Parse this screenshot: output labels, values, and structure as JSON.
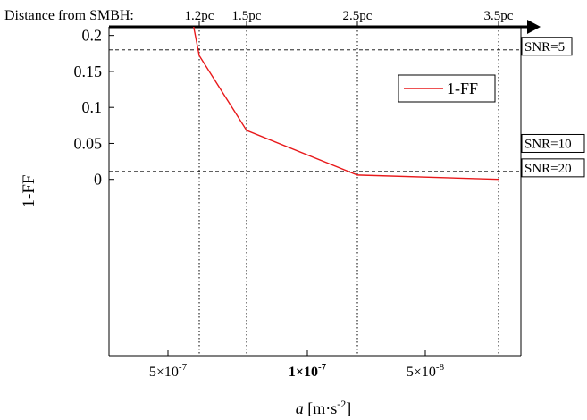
{
  "chart_data": {
    "type": "line",
    "title": "",
    "xlabel": "a [m·s⁻²]",
    "xlabel_parts": {
      "var": "a",
      "unit_open": " [m·s",
      "exp": "-2",
      "unit_close": "]"
    },
    "ylabel": "1-FF",
    "ylim": [
      -0.245,
      0.212
    ],
    "yticks": [
      {
        "value": 0,
        "label": "0"
      },
      {
        "value": 0.05,
        "label": "0.05"
      },
      {
        "value": 0.1,
        "label": "0.1"
      },
      {
        "value": 0.15,
        "label": "0.15"
      },
      {
        "value": 0.2,
        "label": "0.2"
      }
    ],
    "xscale": "categorical (acceleration decreasing left to right)",
    "xticks": [
      {
        "base": "5×10",
        "exp": "-7",
        "bold": false
      },
      {
        "base": "1×10",
        "exp": "-7",
        "bold": true
      },
      {
        "base": "5×10",
        "exp": "-8",
        "bold": false
      }
    ],
    "top_axis": {
      "label": "Distance from SMBH:",
      "ticks": [
        "1.2pc",
        "1.5pc",
        "2.5pc",
        "3.5pc"
      ]
    },
    "series": [
      {
        "name": "1-FF",
        "color": "#e8191b",
        "points": [
          {
            "distance": "1.2pc",
            "value": 0.172
          },
          {
            "distance": "1.5pc",
            "value": 0.068
          },
          {
            "distance": "2.5pc",
            "value": 0.006
          },
          {
            "distance": "3.5pc",
            "value": 0.0
          }
        ]
      }
    ],
    "snr_lines": [
      {
        "label": "SNR=5",
        "value": 0.18
      },
      {
        "label": "SNR=10",
        "value": 0.045
      },
      {
        "label": "SNR=20",
        "value": 0.011
      }
    ],
    "legend": {
      "placement": "top-right",
      "entries": [
        "1-FF"
      ]
    },
    "grid": "dotted vertical lines at distance ticks; dashed horizontal SNR threshold lines"
  }
}
